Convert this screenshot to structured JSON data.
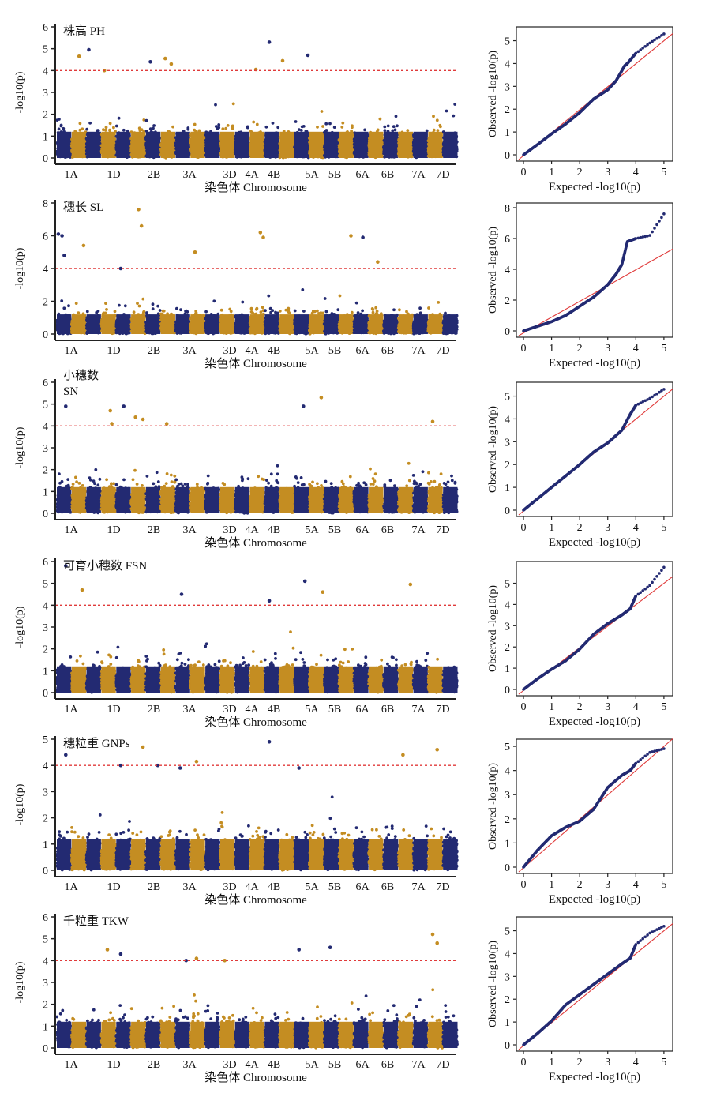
{
  "chart_data": [
    {
      "type": "scatter",
      "subtype": "manhattan",
      "trait": "PH",
      "title": "株高 PH",
      "xlabel": "染色体 Chromosome",
      "ylabel": "-log10(p)",
      "ylim": [
        0,
        6
      ],
      "yticks": [
        0,
        1,
        2,
        3,
        4,
        5,
        6
      ],
      "threshold": 4,
      "chromosome_labels": [
        "1A",
        "1D",
        "2B",
        "3A",
        "3D",
        "4A",
        "4B",
        "5A",
        "5B",
        "6A",
        "6B",
        "7A",
        "7D"
      ],
      "colors": {
        "odd": "#232a72",
        "even": "#c48d22",
        "threshold": "#e03a3a"
      },
      "peaks": [
        {
          "chrom": 2,
          "pos": 0.5,
          "y": 4.65
        },
        {
          "chrom": 3,
          "pos": 0.15,
          "y": 4.95
        },
        {
          "chrom": 4,
          "pos": 0.2,
          "y": 4.0
        },
        {
          "chrom": 7,
          "pos": 0.3,
          "y": 4.4
        },
        {
          "chrom": 8,
          "pos": 0.3,
          "y": 4.55
        },
        {
          "chrom": 8,
          "pos": 0.7,
          "y": 4.3
        },
        {
          "chrom": 14,
          "pos": 0.4,
          "y": 4.05
        },
        {
          "chrom": 15,
          "pos": 0.3,
          "y": 5.3
        },
        {
          "chrom": 16,
          "pos": 0.2,
          "y": 4.45
        },
        {
          "chrom": 17,
          "pos": 0.9,
          "y": 4.7
        }
      ]
    },
    {
      "type": "scatter",
      "subtype": "qq",
      "trait": "PH",
      "xlabel": "Expected -log10(p)",
      "ylabel": "Observed -log10(p)",
      "xlim": [
        0,
        5.2
      ],
      "ylim": [
        0,
        5.4
      ],
      "yticks": [
        0,
        1,
        2,
        3,
        4,
        5
      ],
      "xticks": [
        0,
        1,
        2,
        3,
        4,
        5
      ],
      "curve": [
        [
          0,
          0
        ],
        [
          0.5,
          0.45
        ],
        [
          1,
          0.92
        ],
        [
          1.5,
          1.35
        ],
        [
          2,
          1.85
        ],
        [
          2.5,
          2.45
        ],
        [
          3,
          2.85
        ],
        [
          3.3,
          3.25
        ],
        [
          3.6,
          3.9
        ],
        [
          3.7,
          4.0
        ],
        [
          4,
          4.45
        ],
        [
          4.5,
          4.9
        ],
        [
          5,
          5.3
        ]
      ]
    },
    {
      "type": "scatter",
      "subtype": "manhattan",
      "trait": "SL",
      "title": "穗长 SL",
      "xlabel": "染色体 Chromosome",
      "ylabel": "-log10(p)",
      "ylim": [
        0,
        8
      ],
      "yticks": [
        0,
        2,
        4,
        6,
        8
      ],
      "threshold": 4,
      "chromosome_labels": [
        "1A",
        "1D",
        "2B",
        "3A",
        "3D",
        "4A",
        "4B",
        "5A",
        "5B",
        "6A",
        "6B",
        "7A",
        "7D"
      ],
      "colors": {
        "odd": "#232a72",
        "even": "#c48d22",
        "threshold": "#e03a3a"
      },
      "peaks": [
        {
          "chrom": 1,
          "pos": 0.1,
          "y": 6.1
        },
        {
          "chrom": 1,
          "pos": 0.35,
          "y": 6.0
        },
        {
          "chrom": 1,
          "pos": 0.5,
          "y": 4.8
        },
        {
          "chrom": 2,
          "pos": 0.8,
          "y": 5.4
        },
        {
          "chrom": 5,
          "pos": 0.3,
          "y": 4.0
        },
        {
          "chrom": 6,
          "pos": 0.5,
          "y": 7.6
        },
        {
          "chrom": 6,
          "pos": 0.7,
          "y": 6.6
        },
        {
          "chrom": 10,
          "pos": 0.3,
          "y": 5.0
        },
        {
          "chrom": 14,
          "pos": 0.7,
          "y": 6.2
        },
        {
          "chrom": 14,
          "pos": 0.9,
          "y": 5.9
        },
        {
          "chrom": 20,
          "pos": 0.8,
          "y": 6.0
        },
        {
          "chrom": 21,
          "pos": 0.6,
          "y": 5.9
        },
        {
          "chrom": 22,
          "pos": 0.6,
          "y": 4.4
        }
      ]
    },
    {
      "type": "scatter",
      "subtype": "qq",
      "trait": "SL",
      "xlabel": "Expected -log10(p)",
      "ylabel": "Observed -log10(p)",
      "xlim": [
        0,
        5.2
      ],
      "ylim": [
        0,
        8
      ],
      "yticks": [
        0,
        2,
        4,
        6,
        8
      ],
      "xticks": [
        0,
        1,
        2,
        3,
        4,
        5
      ],
      "curve": [
        [
          0,
          0
        ],
        [
          0.5,
          0.3
        ],
        [
          1,
          0.6
        ],
        [
          1.5,
          1.0
        ],
        [
          2,
          1.6
        ],
        [
          2.5,
          2.2
        ],
        [
          3,
          3.0
        ],
        [
          3.3,
          3.7
        ],
        [
          3.5,
          4.3
        ],
        [
          3.7,
          5.8
        ],
        [
          4,
          6.0
        ],
        [
          4.5,
          6.2
        ],
        [
          5,
          7.6
        ]
      ]
    },
    {
      "type": "scatter",
      "subtype": "manhattan",
      "trait": "SN",
      "title": "小穗数",
      "title2": "SN",
      "xlabel": "染色体 Chromosome",
      "ylabel": "-log10(p)",
      "ylim": [
        0,
        6
      ],
      "yticks": [
        0,
        1,
        2,
        3,
        4,
        5,
        6
      ],
      "threshold": 4,
      "chromosome_labels": [
        "1A",
        "1D",
        "2B",
        "3A",
        "3D",
        "4A",
        "4B",
        "5A",
        "5B",
        "6A",
        "6B",
        "7A",
        "7D"
      ],
      "colors": {
        "odd": "#232a72",
        "even": "#c48d22",
        "threshold": "#e03a3a"
      },
      "peaks": [
        {
          "chrom": 1,
          "pos": 0.6,
          "y": 4.9
        },
        {
          "chrom": 4,
          "pos": 0.6,
          "y": 4.7
        },
        {
          "chrom": 4,
          "pos": 0.7,
          "y": 4.1
        },
        {
          "chrom": 5,
          "pos": 0.5,
          "y": 4.9
        },
        {
          "chrom": 6,
          "pos": 0.3,
          "y": 4.4
        },
        {
          "chrom": 6,
          "pos": 0.8,
          "y": 4.3
        },
        {
          "chrom": 8,
          "pos": 0.4,
          "y": 4.1
        },
        {
          "chrom": 17,
          "pos": 0.6,
          "y": 4.9
        },
        {
          "chrom": 18,
          "pos": 0.8,
          "y": 5.3
        },
        {
          "chrom": 26,
          "pos": 0.3,
          "y": 4.2
        }
      ]
    },
    {
      "type": "scatter",
      "subtype": "qq",
      "trait": "SN",
      "xlabel": "Expected -log10(p)",
      "ylabel": "Observed -log10(p)",
      "xlim": [
        0,
        5.2
      ],
      "ylim": [
        0,
        5.4
      ],
      "yticks": [
        0,
        1,
        2,
        3,
        4,
        5
      ],
      "xticks": [
        0,
        1,
        2,
        3,
        4,
        5
      ],
      "curve": [
        [
          0,
          0
        ],
        [
          0.5,
          0.5
        ],
        [
          1,
          1.0
        ],
        [
          1.5,
          1.5
        ],
        [
          2,
          2.0
        ],
        [
          2.5,
          2.55
        ],
        [
          3,
          2.95
        ],
        [
          3.5,
          3.5
        ],
        [
          3.8,
          4.2
        ],
        [
          4,
          4.6
        ],
        [
          4.5,
          4.9
        ],
        [
          5,
          5.3
        ]
      ]
    },
    {
      "type": "scatter",
      "subtype": "manhattan",
      "trait": "FSN",
      "title": "可育小穗数 FSN",
      "xlabel": "染色体 Chromosome",
      "ylabel": "-log10(p)",
      "ylim": [
        0,
        6
      ],
      "yticks": [
        0,
        1,
        2,
        3,
        4,
        5,
        6
      ],
      "threshold": 4,
      "chromosome_labels": [
        "1A",
        "1D",
        "2B",
        "3A",
        "3D",
        "4A",
        "4B",
        "5A",
        "5B",
        "6A",
        "6B",
        "7A",
        "7D"
      ],
      "colors": {
        "odd": "#232a72",
        "even": "#c48d22",
        "threshold": "#e03a3a"
      },
      "peaks": [
        {
          "chrom": 1,
          "pos": 0.6,
          "y": 5.8
        },
        {
          "chrom": 2,
          "pos": 0.7,
          "y": 4.7
        },
        {
          "chrom": 9,
          "pos": 0.4,
          "y": 4.5
        },
        {
          "chrom": 15,
          "pos": 0.3,
          "y": 4.2
        },
        {
          "chrom": 17,
          "pos": 0.7,
          "y": 5.1
        },
        {
          "chrom": 18,
          "pos": 0.9,
          "y": 4.6
        },
        {
          "chrom": 24,
          "pos": 0.8,
          "y": 4.95
        }
      ]
    },
    {
      "type": "scatter",
      "subtype": "qq",
      "trait": "FSN",
      "xlabel": "Expected -log10(p)",
      "ylabel": "Observed -log10(p)",
      "xlim": [
        0,
        5.2
      ],
      "ylim": [
        0,
        5.8
      ],
      "yticks": [
        0,
        1,
        2,
        3,
        4,
        5
      ],
      "xticks": [
        0,
        1,
        2,
        3,
        4,
        5
      ],
      "curve": [
        [
          0,
          0
        ],
        [
          0.5,
          0.5
        ],
        [
          1,
          0.95
        ],
        [
          1.5,
          1.35
        ],
        [
          2,
          1.9
        ],
        [
          2.5,
          2.6
        ],
        [
          3,
          3.1
        ],
        [
          3.5,
          3.5
        ],
        [
          3.8,
          3.8
        ],
        [
          4,
          4.4
        ],
        [
          4.5,
          4.9
        ],
        [
          5,
          5.75
        ]
      ]
    },
    {
      "type": "scatter",
      "subtype": "manhattan",
      "trait": "GNPs",
      "title": "穗粒重 GNPs",
      "xlabel": "染色体 Chromosome",
      "ylabel": "-log10(p)",
      "ylim": [
        0,
        5
      ],
      "yticks": [
        0,
        1,
        2,
        3,
        4,
        5
      ],
      "threshold": 4,
      "chromosome_labels": [
        "1A",
        "1D",
        "2B",
        "3A",
        "3D",
        "4A",
        "4B",
        "5A",
        "5B",
        "6A",
        "6B",
        "7A",
        "7D"
      ],
      "colors": {
        "odd": "#232a72",
        "even": "#c48d22",
        "threshold": "#e03a3a"
      },
      "peaks": [
        {
          "chrom": 1,
          "pos": 0.6,
          "y": 4.4
        },
        {
          "chrom": 5,
          "pos": 0.3,
          "y": 4.0
        },
        {
          "chrom": 6,
          "pos": 0.8,
          "y": 4.7
        },
        {
          "chrom": 7,
          "pos": 0.8,
          "y": 4.0
        },
        {
          "chrom": 9,
          "pos": 0.3,
          "y": 3.9
        },
        {
          "chrom": 10,
          "pos": 0.4,
          "y": 4.15
        },
        {
          "chrom": 15,
          "pos": 0.3,
          "y": 4.9
        },
        {
          "chrom": 17,
          "pos": 0.3,
          "y": 3.9
        },
        {
          "chrom": 24,
          "pos": 0.3,
          "y": 4.4
        },
        {
          "chrom": 26,
          "pos": 0.6,
          "y": 4.6
        }
      ]
    },
    {
      "type": "scatter",
      "subtype": "qq",
      "trait": "GNPs",
      "xlabel": "Expected -log10(p)",
      "ylabel": "Observed -log10(p)",
      "xlim": [
        0,
        5.2
      ],
      "ylim": [
        0,
        5.1
      ],
      "yticks": [
        0,
        1,
        2,
        3,
        4,
        5
      ],
      "xticks": [
        0,
        1,
        2,
        3,
        4,
        5
      ],
      "curve": [
        [
          0,
          0
        ],
        [
          0.5,
          0.7
        ],
        [
          1,
          1.3
        ],
        [
          1.5,
          1.65
        ],
        [
          2,
          1.9
        ],
        [
          2.5,
          2.4
        ],
        [
          3,
          3.3
        ],
        [
          3.5,
          3.8
        ],
        [
          3.8,
          4.0
        ],
        [
          4,
          4.3
        ],
        [
          4.5,
          4.75
        ],
        [
          5,
          4.9
        ]
      ]
    },
    {
      "type": "scatter",
      "subtype": "manhattan",
      "trait": "TKW",
      "title": "千粒重 TKW",
      "xlabel": "染色体 Chromosome",
      "ylabel": "-log10(p)",
      "ylim": [
        0,
        6
      ],
      "yticks": [
        0,
        1,
        2,
        3,
        4,
        5,
        6
      ],
      "threshold": 4,
      "chromosome_labels": [
        "1A",
        "1D",
        "2B",
        "3A",
        "3D",
        "4A",
        "4B",
        "5A",
        "5B",
        "6A",
        "6B",
        "7A",
        "7D"
      ],
      "colors": {
        "odd": "#232a72",
        "even": "#c48d22",
        "threshold": "#e03a3a"
      },
      "peaks": [
        {
          "chrom": 4,
          "pos": 0.4,
          "y": 4.5
        },
        {
          "chrom": 5,
          "pos": 0.3,
          "y": 4.3
        },
        {
          "chrom": 9,
          "pos": 0.7,
          "y": 4.0
        },
        {
          "chrom": 10,
          "pos": 0.4,
          "y": 4.1
        },
        {
          "chrom": 12,
          "pos": 0.3,
          "y": 4.0
        },
        {
          "chrom": 17,
          "pos": 0.3,
          "y": 4.5
        },
        {
          "chrom": 19,
          "pos": 0.4,
          "y": 4.6
        },
        {
          "chrom": 26,
          "pos": 0.3,
          "y": 5.2
        },
        {
          "chrom": 26,
          "pos": 0.6,
          "y": 4.8
        }
      ]
    },
    {
      "type": "scatter",
      "subtype": "qq",
      "trait": "TKW",
      "xlabel": "Expected -log10(p)",
      "ylabel": "Observed -log10(p)",
      "xlim": [
        0,
        5.2
      ],
      "ylim": [
        0,
        5.4
      ],
      "yticks": [
        0,
        1,
        2,
        3,
        4,
        5
      ],
      "xticks": [
        0,
        1,
        2,
        3,
        4,
        5
      ],
      "curve": [
        [
          0,
          0
        ],
        [
          0.5,
          0.5
        ],
        [
          1,
          1.05
        ],
        [
          1.5,
          1.75
        ],
        [
          2,
          2.2
        ],
        [
          2.5,
          2.65
        ],
        [
          3,
          3.1
        ],
        [
          3.5,
          3.55
        ],
        [
          3.8,
          3.8
        ],
        [
          4,
          4.4
        ],
        [
          4.5,
          4.9
        ],
        [
          5,
          5.2
        ]
      ]
    }
  ]
}
